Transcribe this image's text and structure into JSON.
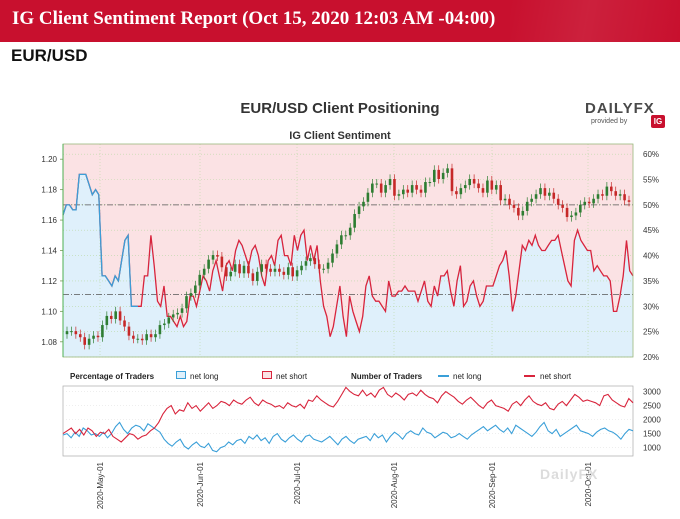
{
  "banner": {
    "title": "IG Client Sentiment Report (Oct 15, 2020 12:03 AM -04:00)"
  },
  "pair": "EUR/USD",
  "logo": {
    "word_daily": "DAILY",
    "word_fx": "FX",
    "provided_by": "provided by",
    "ig": "IG"
  },
  "watermark": "DailyFX",
  "colors": {
    "net_long": "#3a9fd8",
    "net_short": "#d8243c",
    "net_long_fill": "#dff0fb",
    "net_short_fill": "#fbe2e4",
    "up_candle": "#2e7d32",
    "down_candle": "#c62828",
    "banner": "#c8102e"
  },
  "chart_data": [
    {
      "type": "line",
      "title": "EUR/USD Client Positioning",
      "subtitle": "IG Client Sentiment",
      "description_of_layers": "candlestick price with net long/short percentage bands",
      "x_ticks": [
        "2020-May-01",
        "2020-Jun-01",
        "2020-Jul-01",
        "2020-Aug-01",
        "2020-Sep-01",
        "2020-Oct-01"
      ],
      "x_range": [
        "2020-04-20",
        "2020-10-15"
      ],
      "y_left": {
        "ticks": [
          "1.20",
          "1.18",
          "1.16",
          "1.14",
          "1.12",
          "1.10",
          "1.08"
        ],
        "range": [
          1.07,
          1.21
        ]
      },
      "y_right": {
        "ticks": [
          "60%",
          "55%",
          "50%",
          "45%",
          "40%",
          "35%",
          "30%",
          "25%",
          "20%"
        ],
        "range": [
          20,
          62
        ]
      },
      "reference_lines": [
        {
          "axis": "right",
          "value": 50,
          "style": "dash-dot"
        },
        {
          "axis": "left",
          "value": 1.111,
          "style": "dash-dot"
        }
      ],
      "series": [
        {
          "name": "net short",
          "axis": "right",
          "values": [
            48,
            50,
            50,
            49,
            49,
            56,
            56,
            56,
            54,
            52,
            53,
            52,
            36,
            36,
            35,
            34,
            36,
            35,
            39,
            43,
            44,
            30,
            30,
            30,
            30,
            36,
            36,
            44,
            38,
            31,
            30,
            34,
            28,
            28,
            27,
            26,
            28,
            26,
            27,
            32,
            32,
            30,
            33,
            36,
            35,
            33,
            37,
            39,
            36,
            33,
            38,
            39,
            37,
            41,
            43,
            42,
            40,
            38,
            41,
            42,
            40,
            36,
            34,
            39,
            40,
            38,
            43,
            44,
            40,
            40,
            38,
            44,
            41,
            44,
            45,
            39,
            42,
            39,
            42,
            35,
            30,
            28,
            24,
            26,
            30,
            34,
            28,
            24,
            32,
            29,
            27,
            25,
            28,
            34,
            36,
            32,
            31,
            31,
            30,
            29,
            35,
            32,
            32,
            33,
            33,
            34,
            33,
            33,
            33,
            31,
            33,
            35,
            31,
            30,
            34,
            32,
            36,
            36,
            37,
            33,
            30,
            35,
            38,
            30,
            31,
            34,
            35,
            32,
            30,
            31,
            34,
            34,
            34,
            36,
            38,
            39,
            41,
            36,
            29,
            32,
            37,
            42,
            41,
            43,
            42,
            44,
            42,
            41,
            41,
            42,
            43,
            43,
            44,
            41,
            38,
            35,
            34,
            43,
            45,
            43,
            42,
            41,
            41,
            37,
            38,
            37,
            36,
            36,
            35,
            29,
            29,
            32,
            36,
            43,
            37,
            36
          ]
        },
        {
          "name": "net long",
          "axis": "right",
          "values": []
        }
      ],
      "price_ohlc_note": "daily candles approx 1.083 (late Apr) to 1.20 (1 Sep), ~1.17 (mid Oct)",
      "price_close": [
        1.087,
        1.087,
        1.085,
        1.083,
        1.078,
        1.082,
        1.084,
        1.083,
        1.091,
        1.097,
        1.095,
        1.1,
        1.094,
        1.09,
        1.084,
        1.082,
        1.082,
        1.081,
        1.085,
        1.083,
        1.085,
        1.091,
        1.092,
        1.096,
        1.098,
        1.099,
        1.102,
        1.11,
        1.112,
        1.117,
        1.124,
        1.128,
        1.134,
        1.137,
        1.136,
        1.129,
        1.123,
        1.126,
        1.131,
        1.125,
        1.13,
        1.125,
        1.12,
        1.126,
        1.131,
        1.128,
        1.126,
        1.128,
        1.126,
        1.124,
        1.129,
        1.123,
        1.127,
        1.13,
        1.133,
        1.135,
        1.131,
        1.128,
        1.128,
        1.132,
        1.138,
        1.144,
        1.15,
        1.15,
        1.155,
        1.164,
        1.169,
        1.172,
        1.178,
        1.184,
        1.184,
        1.178,
        1.183,
        1.187,
        1.176,
        1.177,
        1.18,
        1.178,
        1.183,
        1.18,
        1.178,
        1.185,
        1.185,
        1.193,
        1.187,
        1.191,
        1.194,
        1.179,
        1.177,
        1.181,
        1.183,
        1.187,
        1.184,
        1.181,
        1.178,
        1.186,
        1.18,
        1.183,
        1.173,
        1.174,
        1.17,
        1.168,
        1.163,
        1.166,
        1.172,
        1.174,
        1.177,
        1.181,
        1.176,
        1.178,
        1.174,
        1.17,
        1.168,
        1.162,
        1.163,
        1.165,
        1.17,
        1.172,
        1.171,
        1.174,
        1.177,
        1.176,
        1.182,
        1.179,
        1.176,
        1.177,
        1.173,
        1.172
      ],
      "lower_panel": {
        "legend_left_title": "Percentage of Traders",
        "legend_left_items": [
          "net long",
          "net short"
        ],
        "legend_right_title": "Number of Traders",
        "legend_right_items": [
          "net long",
          "net short"
        ],
        "y_ticks": [
          "3000",
          "2500",
          "2000",
          "1500",
          "1000"
        ],
        "y_range": [
          700,
          3200
        ],
        "series": [
          {
            "name": "net long",
            "values": [
              1450,
              1500,
              1350,
              1550,
              1400,
              1700,
              1600,
              1450,
              1500,
              1400,
              1550,
              1350,
              1500,
              1750,
              1900,
              1650,
              1500,
              1700,
              1800,
              1750,
              1600,
              1850,
              1750,
              1650,
              1550,
              1300,
              1150,
              1050,
              1200,
              1300,
              1050,
              950,
              1100,
              1200,
              1050,
              1000,
              1150,
              900,
              850,
              1000,
              1050,
              1200,
              1100,
              1250,
              1300,
              1150,
              1400,
              1300,
              1450,
              1250,
              1350,
              1150,
              1400,
              1500,
              1300,
              1200,
              1350,
              1450,
              1300,
              1200,
              1400,
              1450,
              1300,
              1250,
              1200,
              1300,
              1400,
              1250,
              1100,
              1300,
              1400,
              1250,
              1150,
              1300,
              1350,
              1400,
              1250,
              1500,
              1350,
              1450,
              1200,
              1400,
              1550,
              1450,
              1300,
              1500,
              1600,
              1500,
              1450,
              1700,
              1550,
              1500,
              1350,
              1450,
              1550,
              1500,
              1350,
              1400,
              1500,
              1400,
              1300,
              1450,
              1550,
              1650,
              1750,
              1600,
              1700,
              1800,
              1650,
              1550,
              1700,
              1500,
              1800,
              1700,
              1600,
              1500,
              1400,
              1550,
              1750,
              1900,
              1600,
              1500,
              1650,
              1400,
              1500,
              1600,
              1700,
              1800,
              1600,
              1550,
              1500,
              1400,
              1550,
              1650,
              1700,
              1600,
              1550,
              1450,
              1300,
              1500,
              1650,
              1600
            ]
          },
          {
            "name": "net short",
            "values": [
              1500,
              1600,
              1700,
              1500,
              1650,
              1450,
              1700,
              1600,
              1400,
              1550,
              1500,
              1650,
              1400,
              1300,
              1200,
              1350,
              1500,
              1450,
              1300,
              1400,
              1450,
              1600,
              1700,
              1900,
              2200,
              2400,
              2500,
              2200,
              2350,
              2300,
              2600,
              2400,
              2500,
              2300,
              2450,
              2600,
              2400,
              2500,
              2650,
              2600,
              2500,
              2700,
              2600,
              2550,
              2700,
              2800,
              2600,
              2500,
              2700,
              2600,
              2550,
              2450,
              2500,
              2400,
              2600,
              2500,
              2450,
              2550,
              2400,
              2700,
              2650,
              2850,
              2700,
              2600,
              2500,
              2450,
              2650,
              2900,
              3150,
              3000,
              2900,
              2850,
              3050,
              2850,
              2950,
              2800,
              3050,
              3150,
              2900,
              2800,
              2950,
              2850,
              2700,
              2900,
              2950,
              2850,
              3050,
              2900,
              2800,
              2750,
              2600,
              2850,
              3000,
              2900,
              2800,
              2650,
              2550,
              2700,
              2800,
              2650,
              2500,
              2400,
              2600,
              2700,
              2500,
              2450,
              2400,
              2300,
              2550,
              2650,
              2500,
              2700,
              2850,
              2650,
              2550,
              2500,
              2600,
              2400,
              2350,
              2550,
              2650,
              2500,
              2700,
              2900,
              2800,
              2650,
              2700,
              2650,
              2600,
              2500,
              2850,
              2900,
              2700,
              2600,
              2500,
              2450,
              2750,
              2600
            ]
          }
        ]
      }
    }
  ]
}
